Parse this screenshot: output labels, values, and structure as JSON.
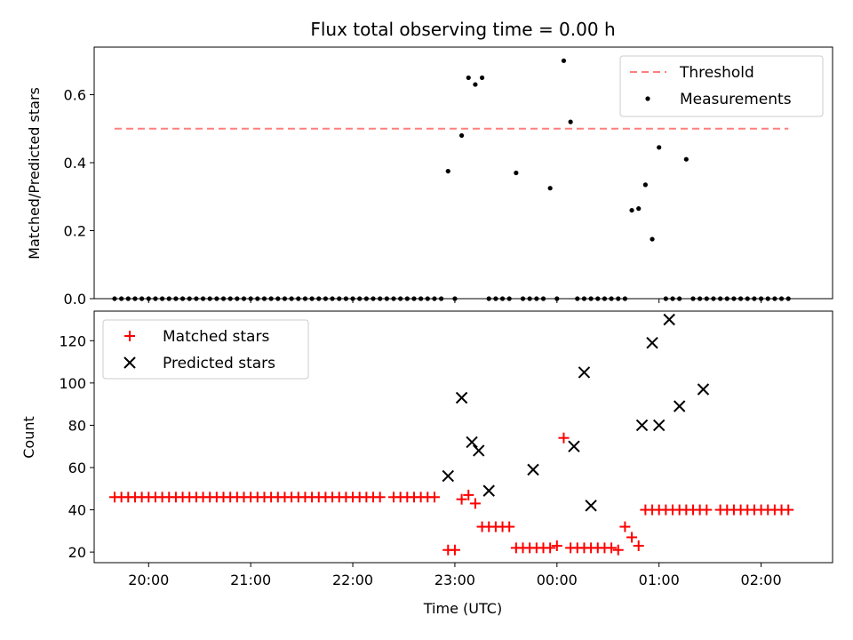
{
  "chart_data": [
    {
      "type": "scatter",
      "title": "Flux total observing time = 0.00 h",
      "xlabel": "",
      "ylabel": "Matched/Predicted stars",
      "xlim": [
        "19:28",
        "02:42"
      ],
      "ylim": [
        0,
        0.74
      ],
      "yticks": [
        0.0,
        0.2,
        0.4,
        0.6
      ],
      "ytick_labels": [
        "0.0",
        "0.2",
        "0.4",
        "0.6"
      ],
      "xticks": [
        "20:00",
        "21:00",
        "22:00",
        "23:00",
        "00:00",
        "01:00",
        "02:00"
      ],
      "legend_position": "upper right",
      "threshold": {
        "name": "Threshold",
        "value": 0.5,
        "x_start": "19:40",
        "x_end": "02:16",
        "color": "#ff7f7f"
      },
      "series": [
        {
          "name": "Measurements",
          "color": "#000000",
          "x": [
            "19:40",
            "19:44",
            "19:48",
            "19:52",
            "19:56",
            "20:00",
            "20:04",
            "20:08",
            "20:12",
            "20:16",
            "20:20",
            "20:24",
            "20:28",
            "20:32",
            "20:36",
            "20:40",
            "20:44",
            "20:48",
            "20:52",
            "20:56",
            "21:00",
            "21:04",
            "21:08",
            "21:12",
            "21:16",
            "21:20",
            "21:24",
            "21:28",
            "21:32",
            "21:36",
            "21:40",
            "21:44",
            "21:48",
            "21:52",
            "21:56",
            "22:00",
            "22:04",
            "22:08",
            "22:12",
            "22:16",
            "22:20",
            "22:24",
            "22:28",
            "22:32",
            "22:36",
            "22:40",
            "22:44",
            "22:48",
            "22:52",
            "22:56",
            "23:00",
            "23:04",
            "23:08",
            "23:12",
            "23:16",
            "23:20",
            "23:24",
            "23:28",
            "23:32",
            "23:36",
            "23:40",
            "23:44",
            "23:48",
            "23:52",
            "23:56",
            "00:00",
            "00:04",
            "00:08",
            "00:12",
            "00:16",
            "00:20",
            "00:24",
            "00:28",
            "00:32",
            "00:36",
            "00:40",
            "00:44",
            "00:48",
            "00:52",
            "00:56",
            "01:00",
            "01:04",
            "01:08",
            "01:12",
            "01:16",
            "01:20",
            "01:24",
            "01:28",
            "01:32",
            "01:36",
            "01:40",
            "01:44",
            "01:48",
            "01:52",
            "01:56",
            "02:00",
            "02:04",
            "02:08",
            "02:12",
            "02:16"
          ],
          "y": [
            0,
            0,
            0,
            0,
            0,
            0,
            0,
            0,
            0,
            0,
            0,
            0,
            0,
            0,
            0,
            0,
            0,
            0,
            0,
            0,
            0,
            0,
            0,
            0,
            0,
            0,
            0,
            0,
            0,
            0,
            0,
            0,
            0,
            0,
            0,
            0,
            0,
            0,
            0,
            0,
            0,
            0,
            0,
            0,
            0,
            0,
            0,
            0,
            0,
            0.375,
            0,
            0.48,
            0.65,
            0.63,
            0.65,
            0,
            0,
            0,
            0,
            0.37,
            0,
            0,
            0,
            0,
            0.325,
            0,
            0.7,
            0.52,
            0,
            0,
            0,
            0,
            0,
            0,
            0,
            0,
            0.26,
            0.265,
            0.335,
            0.175,
            0.445,
            0,
            0,
            0,
            0.41,
            0,
            0,
            0,
            0,
            0,
            0,
            0,
            0,
            0,
            0,
            0,
            0,
            0,
            0,
            0
          ],
          "x_pairs_note": ""
        }
      ]
    },
    {
      "type": "scatter",
      "title": "",
      "xlabel": "Time (UTC)",
      "ylabel": "Count",
      "xlim": [
        "19:28",
        "02:42"
      ],
      "ylim": [
        15,
        134
      ],
      "yticks": [
        20,
        40,
        60,
        80,
        100,
        120
      ],
      "ytick_labels": [
        "20",
        "40",
        "60",
        "80",
        "100",
        "120"
      ],
      "xticks": [
        "20:00",
        "21:00",
        "22:00",
        "23:00",
        "00:00",
        "01:00",
        "02:00"
      ],
      "legend_position": "upper left",
      "series": [
        {
          "name": "Matched stars",
          "color": "#ff0000",
          "marker": "plus",
          "x": [
            "19:40",
            "19:44",
            "19:48",
            "19:52",
            "19:56",
            "20:00",
            "20:04",
            "20:08",
            "20:12",
            "20:16",
            "20:20",
            "20:24",
            "20:28",
            "20:32",
            "20:36",
            "20:40",
            "20:44",
            "20:48",
            "20:52",
            "20:56",
            "21:00",
            "21:04",
            "21:08",
            "21:12",
            "21:16",
            "21:20",
            "21:24",
            "21:28",
            "21:32",
            "21:36",
            "21:40",
            "21:44",
            "21:48",
            "21:52",
            "21:56",
            "22:00",
            "22:04",
            "22:08",
            "22:12",
            "22:16",
            "22:24",
            "22:28",
            "22:32",
            "22:36",
            "22:40",
            "22:44",
            "22:48",
            "22:56",
            "23:00",
            "23:04",
            "23:08",
            "23:12",
            "23:16",
            "23:20",
            "23:24",
            "23:28",
            "23:32",
            "23:36",
            "23:40",
            "23:44",
            "23:48",
            "23:52",
            "23:56",
            "00:00",
            "00:04",
            "00:08",
            "00:12",
            "00:16",
            "00:20",
            "00:24",
            "00:28",
            "00:32",
            "00:36",
            "00:40",
            "00:44",
            "00:48",
            "00:52",
            "00:56",
            "01:00",
            "01:04",
            "01:08",
            "01:12",
            "01:16",
            "01:20",
            "01:24",
            "01:28",
            "01:36",
            "01:40",
            "01:44",
            "01:48",
            "01:52",
            "01:56",
            "02:00",
            "02:04",
            "02:08",
            "02:12",
            "02:16"
          ],
          "y": [
            46,
            46,
            46,
            46,
            46,
            46,
            46,
            46,
            46,
            46,
            46,
            46,
            46,
            46,
            46,
            46,
            46,
            46,
            46,
            46,
            46,
            46,
            46,
            46,
            46,
            46,
            46,
            46,
            46,
            46,
            46,
            46,
            46,
            46,
            46,
            46,
            46,
            46,
            46,
            46,
            46,
            46,
            46,
            46,
            46,
            46,
            46,
            21,
            21,
            45,
            47,
            43,
            32,
            32,
            32,
            32,
            32,
            22,
            22,
            22,
            22,
            22,
            22,
            23,
            74,
            22,
            22,
            22,
            22,
            22,
            22,
            22,
            21,
            32,
            27,
            23,
            40,
            40,
            40,
            40,
            40,
            40,
            40,
            40,
            40,
            40,
            40,
            40,
            40,
            40,
            40,
            40,
            40,
            40,
            40,
            40,
            40
          ],
          "x_pairs_note": ""
        },
        {
          "name": "Predicted stars",
          "color": "#000000",
          "marker": "x",
          "x": [
            "22:56",
            "23:04",
            "23:10",
            "23:14",
            "23:20",
            "23:46",
            "00:10",
            "00:16",
            "00:20",
            "00:50",
            "00:56",
            "01:00",
            "01:06",
            "01:12",
            "01:26"
          ],
          "y": [
            56,
            93,
            72,
            68,
            49,
            59,
            70,
            105,
            42,
            80,
            119,
            80,
            130,
            89,
            97
          ]
        }
      ]
    }
  ]
}
